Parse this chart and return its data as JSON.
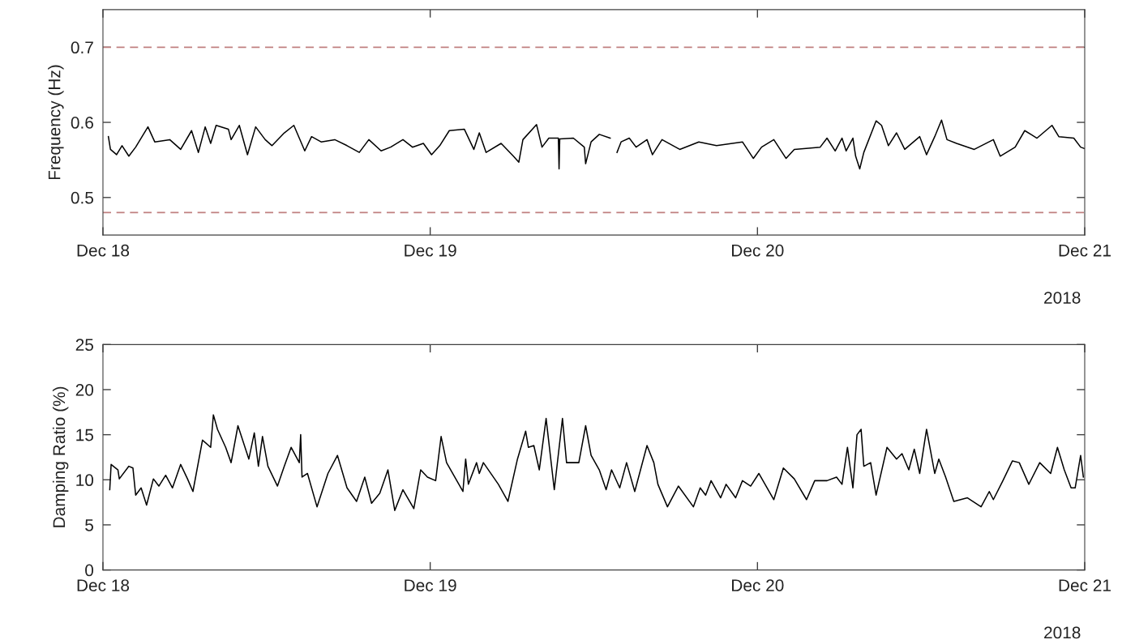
{
  "chart_data": [
    {
      "type": "line",
      "ylabel": "Frequency (Hz)",
      "xlim": [
        "2018-12-18",
        "2018-12-21"
      ],
      "xticks": [
        {
          "value": "2018-12-18",
          "label": "Dec 18"
        },
        {
          "value": "2018-12-19",
          "label": "Dec 19"
        },
        {
          "value": "2018-12-20",
          "label": "Dec 20"
        },
        {
          "value": "2018-12-21",
          "label": "Dec 21"
        }
      ],
      "ylim": [
        0.45,
        0.75
      ],
      "yticks": [
        0.5,
        0.6,
        0.7
      ],
      "grid": false,
      "annotations": [
        "2018"
      ],
      "ref_lines": [
        {
          "axis": "y",
          "value": 0.7,
          "color": "#c08080",
          "line_style": "dashed"
        },
        {
          "axis": "y",
          "value": 0.48,
          "color": "#c08080",
          "line_style": "dashed"
        }
      ],
      "series": [
        {
          "color": "#000000",
          "x": [
            "2018-12-18T00:24",
            "2018-12-18T00:33",
            "2018-12-18T01:00",
            "2018-12-18T01:24",
            "2018-12-18T01:54",
            "2018-12-18T02:24",
            "2018-12-18T03:18",
            "2018-12-18T03:48",
            "2018-12-18T04:54",
            "2018-12-18T05:42",
            "2018-12-18T06:30",
            "2018-12-18T07:00",
            "2018-12-18T07:30",
            "2018-12-18T07:54",
            "2018-12-18T08:18",
            "2018-12-18T09:12",
            "2018-12-18T09:24",
            "2018-12-18T10:00",
            "2018-12-18T10:36",
            "2018-12-18T11:12",
            "2018-12-18T11:54",
            "2018-12-18T12:24",
            "2018-12-18T13:18",
            "2018-12-18T14:00",
            "2018-12-18T14:48",
            "2018-12-18T15:18",
            "2018-12-18T16:00",
            "2018-12-18T17:00",
            "2018-12-18T17:54",
            "2018-12-18T18:48",
            "2018-12-18T19:30",
            "2018-12-18T20:24",
            "2018-12-18T21:06",
            "2018-12-18T22:00",
            "2018-12-18T22:42",
            "2018-12-18T23:30",
            "2018-12-19T00:06",
            "2018-12-19T00:42",
            "2018-12-19T01:24",
            "2018-12-19T02:30",
            "2018-12-19T03:12",
            "2018-12-19T03:36",
            "2018-12-19T04:06",
            "2018-12-19T05:12",
            "2018-12-19T06:06",
            "2018-12-19T06:30",
            "2018-12-19T06:48",
            "2018-12-19T07:48",
            "2018-12-19T08:12",
            "2018-12-19T08:42",
            "2018-12-19T09:24",
            "2018-12-19T09:27",
            "2018-12-19T09:30",
            "2018-12-19T10:30",
            "2018-12-19T11:18",
            "2018-12-19T11:24",
            "2018-12-19T11:48",
            "2018-12-19T12:24",
            "2018-12-19T13:12",
            "2018-12-19T13:27",
            "2018-12-19T13:42",
            "2018-12-19T14:00",
            "2018-12-19T14:36",
            "2018-12-19T15:06",
            "2018-12-19T15:54",
            "2018-12-19T16:18",
            "2018-12-19T17:00",
            "2018-12-19T18:18",
            "2018-12-19T19:42",
            "2018-12-19T21:00",
            "2018-12-19T22:54",
            "2018-12-19T23:42",
            "2018-12-20T00:18",
            "2018-12-20T01:12",
            "2018-12-20T02:06",
            "2018-12-20T02:42",
            "2018-12-20T04:36",
            "2018-12-20T05:06",
            "2018-12-20T05:42",
            "2018-12-20T06:12",
            "2018-12-20T06:30",
            "2018-12-20T07:00",
            "2018-12-20T07:12",
            "2018-12-20T07:30",
            "2018-12-20T07:48",
            "2018-12-20T08:42",
            "2018-12-20T09:06",
            "2018-12-20T09:36",
            "2018-12-20T10:12",
            "2018-12-20T10:48",
            "2018-12-20T11:54",
            "2018-12-20T12:24",
            "2018-12-20T13:00",
            "2018-12-20T13:30",
            "2018-12-20T13:54",
            "2018-12-20T14:36",
            "2018-12-20T15:54",
            "2018-12-20T17:18",
            "2018-12-20T17:48",
            "2018-12-20T18:54",
            "2018-12-20T19:36",
            "2018-12-20T20:30",
            "2018-12-20T21:36",
            "2018-12-20T22:06",
            "2018-12-20T23:12",
            "2018-12-20T23:42",
            "2018-12-21T00:00"
          ],
          "values": [
            0.581,
            0.564,
            0.557,
            0.569,
            0.555,
            0.567,
            0.594,
            0.574,
            0.577,
            0.564,
            0.589,
            0.56,
            0.594,
            0.572,
            0.596,
            0.591,
            0.577,
            0.596,
            0.557,
            0.594,
            0.577,
            0.569,
            0.586,
            0.596,
            0.562,
            0.581,
            0.574,
            0.577,
            0.569,
            0.56,
            0.577,
            0.562,
            0.567,
            0.577,
            0.567,
            0.572,
            0.557,
            0.569,
            0.589,
            0.591,
            0.564,
            0.586,
            0.56,
            0.572,
            0.555,
            0.547,
            0.577,
            0.597,
            0.567,
            0.579,
            0.579,
            0.538,
            0.578,
            0.579,
            0.567,
            0.545,
            0.574,
            0.584,
            0.579,
            null,
            0.56,
            0.574,
            0.579,
            0.567,
            0.577,
            0.557,
            0.577,
            0.564,
            0.574,
            0.569,
            0.574,
            0.552,
            0.567,
            0.577,
            0.552,
            0.564,
            0.567,
            0.579,
            0.562,
            0.579,
            0.562,
            0.579,
            0.555,
            0.538,
            0.56,
            0.602,
            0.596,
            0.569,
            0.586,
            0.564,
            0.581,
            0.557,
            0.581,
            0.603,
            0.577,
            0.572,
            0.564,
            0.577,
            0.555,
            0.567,
            0.589,
            0.579,
            0.596,
            0.581,
            0.579,
            0.567,
            0.565
          ]
        }
      ]
    },
    {
      "type": "line",
      "ylabel": "Damping Ratio (%)",
      "xlim": [
        "2018-12-18",
        "2018-12-21"
      ],
      "xticks": [
        {
          "value": "2018-12-18",
          "label": "Dec 18"
        },
        {
          "value": "2018-12-19",
          "label": "Dec 19"
        },
        {
          "value": "2018-12-20",
          "label": "Dec 20"
        },
        {
          "value": "2018-12-21",
          "label": "Dec 21"
        }
      ],
      "ylim": [
        0,
        25
      ],
      "yticks": [
        0,
        5,
        10,
        15,
        20,
        25
      ],
      "grid": false,
      "annotations": [
        "2018"
      ],
      "series": [
        {
          "color": "#000000",
          "x": [
            "2018-12-18T00:30",
            "2018-12-18T00:36",
            "2018-12-18T01:06",
            "2018-12-18T01:12",
            "2018-12-18T01:54",
            "2018-12-18T02:12",
            "2018-12-18T02:24",
            "2018-12-18T02:48",
            "2018-12-18T03:12",
            "2018-12-18T03:42",
            "2018-12-18T04:06",
            "2018-12-18T04:36",
            "2018-12-18T05:06",
            "2018-12-18T05:42",
            "2018-12-18T06:12",
            "2018-12-18T06:36",
            "2018-12-18T07:18",
            "2018-12-18T07:54",
            "2018-12-18T08:06",
            "2018-12-18T08:24",
            "2018-12-18T09:00",
            "2018-12-18T09:24",
            "2018-12-18T09:54",
            "2018-12-18T10:42",
            "2018-12-18T11:06",
            "2018-12-18T11:24",
            "2018-12-18T11:42",
            "2018-12-18T12:06",
            "2018-12-18T12:48",
            "2018-12-18T13:18",
            "2018-12-18T13:48",
            "2018-12-18T14:24",
            "2018-12-18T14:30",
            "2018-12-18T14:36",
            "2018-12-18T15:00",
            "2018-12-18T15:42",
            "2018-12-18T16:30",
            "2018-12-18T17:12",
            "2018-12-18T17:54",
            "2018-12-18T18:36",
            "2018-12-18T19:12",
            "2018-12-18T19:42",
            "2018-12-18T20:18",
            "2018-12-18T20:54",
            "2018-12-18T21:24",
            "2018-12-18T22:00",
            "2018-12-18T22:48",
            "2018-12-18T23:18",
            "2018-12-18T23:48",
            "2018-12-19T00:24",
            "2018-12-19T00:48",
            "2018-12-19T01:12",
            "2018-12-19T02:24",
            "2018-12-19T02:36",
            "2018-12-19T02:48",
            "2018-12-19T03:24",
            "2018-12-19T03:36",
            "2018-12-19T03:54",
            "2018-12-19T05:00",
            "2018-12-19T05:42",
            "2018-12-19T06:24",
            "2018-12-19T07:00",
            "2018-12-19T07:12",
            "2018-12-19T07:36",
            "2018-12-19T08:00",
            "2018-12-19T08:30",
            "2018-12-19T09:06",
            "2018-12-19T09:42",
            "2018-12-19T10:00",
            "2018-12-19T10:54",
            "2018-12-19T11:24",
            "2018-12-19T11:48",
            "2018-12-19T12:24",
            "2018-12-19T12:54",
            "2018-12-19T13:18",
            "2018-12-19T13:54",
            "2018-12-19T14:24",
            "2018-12-19T15:00",
            "2018-12-19T15:54",
            "2018-12-19T16:24",
            "2018-12-19T16:42",
            "2018-12-19T17:24",
            "2018-12-19T18:12",
            "2018-12-19T19:18",
            "2018-12-19T19:48",
            "2018-12-19T20:12",
            "2018-12-19T20:36",
            "2018-12-19T21:18",
            "2018-12-19T21:42",
            "2018-12-19T22:24",
            "2018-12-19T22:54",
            "2018-12-19T23:30",
            "2018-12-20T00:06",
            "2018-12-20T01:12",
            "2018-12-20T01:54",
            "2018-12-20T02:42",
            "2018-12-20T03:36",
            "2018-12-20T04:12",
            "2018-12-20T05:06",
            "2018-12-20T05:48",
            "2018-12-20T06:12",
            "2018-12-20T06:36",
            "2018-12-20T07:00",
            "2018-12-20T07:18",
            "2018-12-20T07:36",
            "2018-12-20T07:48",
            "2018-12-20T08:18",
            "2018-12-20T08:42",
            "2018-12-20T09:30",
            "2018-12-20T10:12",
            "2018-12-20T10:36",
            "2018-12-20T11:06",
            "2018-12-20T11:30",
            "2018-12-20T11:54",
            "2018-12-20T12:24",
            "2018-12-20T13:00",
            "2018-12-20T13:18",
            "2018-12-20T13:48",
            "2018-12-20T14:24",
            "2018-12-20T15:24",
            "2018-12-20T16:24",
            "2018-12-20T17:00",
            "2018-12-20T17:18",
            "2018-12-20T18:00",
            "2018-12-20T18:42",
            "2018-12-20T19:12",
            "2018-12-20T19:54",
            "2018-12-20T20:42",
            "2018-12-20T21:30",
            "2018-12-20T22:00",
            "2018-12-20T22:30",
            "2018-12-20T23:00",
            "2018-12-20T23:18",
            "2018-12-20T23:42",
            "2018-12-20T23:54"
          ],
          "values": [
            8.9,
            11.7,
            11.1,
            10.1,
            11.5,
            11.3,
            8.3,
            9.1,
            7.2,
            10.1,
            9.3,
            10.5,
            9.1,
            11.7,
            10.1,
            8.7,
            14.4,
            13.6,
            17.2,
            15.6,
            13.6,
            11.9,
            16.0,
            12.3,
            15.2,
            11.5,
            14.8,
            11.5,
            9.3,
            11.5,
            13.6,
            11.9,
            15.0,
            10.3,
            10.7,
            7.0,
            10.7,
            12.7,
            9.1,
            7.6,
            10.3,
            7.4,
            8.5,
            11.1,
            6.6,
            8.9,
            6.8,
            11.1,
            10.3,
            9.9,
            14.8,
            11.9,
            8.7,
            12.3,
            9.5,
            11.9,
            10.7,
            11.9,
            9.5,
            7.6,
            12.3,
            15.4,
            13.6,
            13.8,
            11.1,
            16.8,
            8.9,
            16.8,
            11.9,
            11.9,
            16.0,
            12.7,
            11.1,
            8.9,
            11.1,
            9.1,
            11.9,
            8.7,
            13.8,
            11.9,
            9.5,
            7.0,
            9.3,
            7.0,
            9.1,
            8.3,
            9.9,
            8.0,
            9.5,
            8.0,
            9.9,
            9.3,
            10.7,
            7.8,
            11.3,
            10.1,
            7.8,
            9.9,
            9.9,
            10.3,
            9.5,
            13.6,
            9.1,
            15.0,
            15.6,
            11.5,
            11.9,
            8.3,
            13.6,
            12.3,
            12.9,
            11.1,
            13.4,
            10.7,
            15.6,
            10.7,
            12.3,
            10.3,
            7.6,
            8.0,
            7.0,
            8.7,
            7.8,
            9.9,
            12.1,
            11.9,
            9.5,
            11.9,
            10.7,
            13.6,
            11.1,
            9.1,
            9.1,
            12.7,
            10.3
          ]
        }
      ]
    }
  ]
}
